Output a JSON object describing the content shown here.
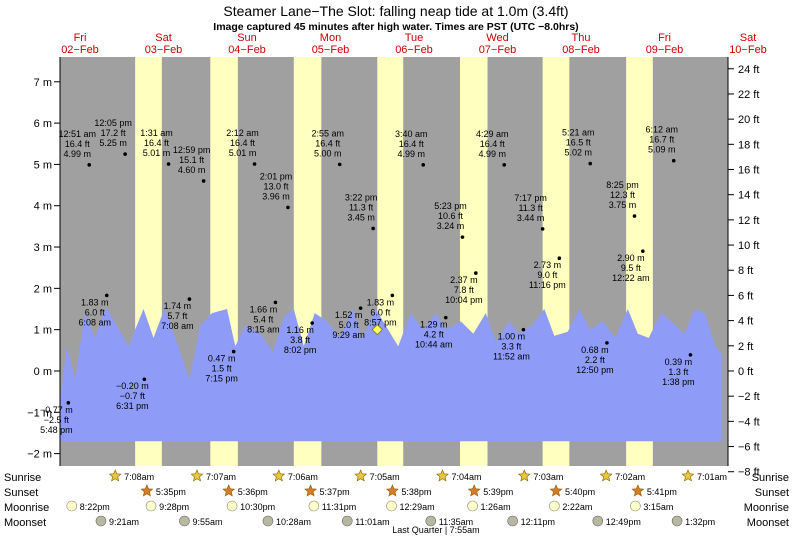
{
  "chart_data": {
    "type": "area",
    "title": "Steamer Lane−The Slot: falling  neap tide at 1.0m (3.4ft)",
    "subtitle": "Image captured 45 minutes after high water. Times are PST (UTC −8.0hrs)",
    "days": [
      {
        "dow": "Fri",
        "date": "02−Feb"
      },
      {
        "dow": "Sat",
        "date": "03−Feb"
      },
      {
        "dow": "Sun",
        "date": "04−Feb"
      },
      {
        "dow": "Mon",
        "date": "05−Feb"
      },
      {
        "dow": "Tue",
        "date": "06−Feb"
      },
      {
        "dow": "Wed",
        "date": "07−Feb"
      },
      {
        "dow": "Thu",
        "date": "08−Feb"
      },
      {
        "dow": "Fri",
        "date": "09−Feb"
      },
      {
        "dow": "Sat",
        "date": "10−Feb"
      }
    ],
    "y_left": {
      "unit": "m",
      "ylim": [
        -2.3,
        7.6
      ],
      "ticks": [
        "−2 m",
        "−1 m",
        "0 m",
        "1 m",
        "2 m",
        "3 m",
        "4 m",
        "5 m",
        "6 m",
        "7 m"
      ]
    },
    "y_right": {
      "unit": "ft",
      "ticks": [
        "−8 ft",
        "−6 ft",
        "−4 ft",
        "−2 ft",
        "0 ft",
        "2 ft",
        "4 ft",
        "6 ft",
        "8 ft",
        "10 ft",
        "12 ft",
        "14 ft",
        "16 ft",
        "18 ft",
        "20 ft",
        "22 ft",
        "24 ft"
      ]
    },
    "tide_curve": [
      [
        0.0,
        -0.77
      ],
      [
        0.08,
        0.6
      ],
      [
        0.18,
        -0.2
      ],
      [
        0.3,
        1.4
      ],
      [
        0.42,
        0.8
      ],
      [
        0.55,
        1.55
      ],
      [
        0.68,
        1.1
      ],
      [
        0.82,
        0.6
      ],
      [
        1.0,
        1.5
      ],
      [
        1.12,
        0.8
      ],
      [
        1.25,
        1.5
      ],
      [
        1.4,
        0.7
      ],
      [
        1.55,
        -0.2
      ],
      [
        1.68,
        1.1
      ],
      [
        1.82,
        1.4
      ],
      [
        2.0,
        1.5
      ],
      [
        2.1,
        0.6
      ],
      [
        2.22,
        1.1
      ],
      [
        2.4,
        0.9
      ],
      [
        2.55,
        0.47
      ],
      [
        2.68,
        1.3
      ],
      [
        2.8,
        1.5
      ],
      [
        2.92,
        0.6
      ],
      [
        3.05,
        1.4
      ],
      [
        3.2,
        1.2
      ],
      [
        3.35,
        0.8
      ],
      [
        3.5,
        1.5
      ],
      [
        3.62,
        0.8
      ],
      [
        3.78,
        1.5
      ],
      [
        3.9,
        1.1
      ],
      [
        4.05,
        0.6
      ],
      [
        4.2,
        1.4
      ],
      [
        4.35,
        1.0
      ],
      [
        4.5,
        1.4
      ],
      [
        4.62,
        1.0
      ],
      [
        4.8,
        1.2
      ],
      [
        4.95,
        0.9
      ],
      [
        5.1,
        1.4
      ],
      [
        5.22,
        0.7
      ],
      [
        5.38,
        1.2
      ],
      [
        5.5,
        0.9
      ],
      [
        5.65,
        1.1
      ],
      [
        5.8,
        1.5
      ],
      [
        5.92,
        0.85
      ],
      [
        6.08,
        0.95
      ],
      [
        6.22,
        1.5
      ],
      [
        6.35,
        1.0
      ],
      [
        6.5,
        1.2
      ],
      [
        6.65,
        0.8
      ],
      [
        6.8,
        1.5
      ],
      [
        6.92,
        0.9
      ],
      [
        7.05,
        0.8
      ],
      [
        7.2,
        1.4
      ],
      [
        7.32,
        1.2
      ],
      [
        7.48,
        0.9
      ],
      [
        7.6,
        1.5
      ],
      [
        7.72,
        1.4
      ],
      [
        7.85,
        0.6
      ],
      [
        7.93,
        0.39
      ]
    ],
    "annotations": [
      {
        "x": 0.1,
        "y": -0.77,
        "time": "5:48 pm",
        "ft": "−2.5 ft",
        "m": "−0.77 m",
        "pos": "below"
      },
      {
        "x": 0.35,
        "y": 4.99,
        "time": "12:51 am",
        "ft": "16.4 ft",
        "m": "4.99 m",
        "pos": "above"
      },
      {
        "x": 0.56,
        "y": 1.83,
        "time": "6:08 am",
        "ft": "6.0 ft",
        "m": "1.83 m",
        "pos": "below"
      },
      {
        "x": 0.78,
        "y": 5.25,
        "time": "12:05 pm",
        "ft": "17.2 ft",
        "m": "5.25 m",
        "pos": "above"
      },
      {
        "x": 1.01,
        "y": -0.2,
        "time": "6:31 pm",
        "ft": "−0.7 ft",
        "m": "−0.20 m",
        "pos": "below"
      },
      {
        "x": 1.3,
        "y": 5.01,
        "time": "1:31 am",
        "ft": "16.4 ft",
        "m": "5.01 m",
        "pos": "above"
      },
      {
        "x": 1.55,
        "y": 1.74,
        "time": "7:08 am",
        "ft": "5.7 ft",
        "m": "1.74 m",
        "pos": "below"
      },
      {
        "x": 1.72,
        "y": 4.6,
        "time": "12:59 pm",
        "ft": "15.1 ft",
        "m": "4.60 m",
        "pos": "above"
      },
      {
        "x": 2.08,
        "y": 0.47,
        "time": "7:15 pm",
        "ft": "1.5 ft",
        "m": "0.47 m",
        "pos": "below"
      },
      {
        "x": 2.33,
        "y": 5.01,
        "time": "2:12 am",
        "ft": "16.4 ft",
        "m": "5.01 m",
        "pos": "above"
      },
      {
        "x": 2.58,
        "y": 1.66,
        "time": "8:15 am",
        "ft": "5.4 ft",
        "m": "1.66 m",
        "pos": "below"
      },
      {
        "x": 2.73,
        "y": 3.96,
        "time": "2:01 pm",
        "ft": "13.0 ft",
        "m": "3.96 m",
        "pos": "above"
      },
      {
        "x": 3.02,
        "y": 1.16,
        "time": "8:02 pm",
        "ft": "3.8 ft",
        "m": "1.16 m",
        "pos": "below"
      },
      {
        "x": 3.35,
        "y": 5.0,
        "time": "2:55 am",
        "ft": "16.4 ft",
        "m": "5.00 m",
        "pos": "above"
      },
      {
        "x": 3.6,
        "y": 1.52,
        "time": "9:29 am",
        "ft": "5.0 ft",
        "m": "1.52 m",
        "pos": "below"
      },
      {
        "x": 3.75,
        "y": 3.45,
        "time": "3:22 pm",
        "ft": "11.3 ft",
        "m": "3.45 m",
        "pos": "above"
      },
      {
        "x": 3.98,
        "y": 1.83,
        "time": "8:57 pm",
        "ft": "6.0 ft",
        "m": "1.83 m",
        "pos": "below"
      },
      {
        "x": 4.35,
        "y": 4.99,
        "time": "3:40 am",
        "ft": "16.4 ft",
        "m": "4.99 m",
        "pos": "above"
      },
      {
        "x": 4.62,
        "y": 1.29,
        "time": "10:44 am",
        "ft": "4.2 ft",
        "m": "1.29 m",
        "pos": "below"
      },
      {
        "x": 4.82,
        "y": 3.24,
        "time": "5:23 pm",
        "ft": "10.6 ft",
        "m": "3.24 m",
        "pos": "above"
      },
      {
        "x": 4.98,
        "y": 2.37,
        "time": "10:04 pm",
        "ft": "7.8 ft",
        "m": "2.37 m",
        "pos": "below"
      },
      {
        "x": 5.32,
        "y": 4.99,
        "time": "4:29 am",
        "ft": "16.4 ft",
        "m": "4.99 m",
        "pos": "above"
      },
      {
        "x": 5.55,
        "y": 1.0,
        "time": "11:52 am",
        "ft": "3.3 ft",
        "m": "1.00 m",
        "pos": "below"
      },
      {
        "x": 5.78,
        "y": 3.44,
        "time": "7:17 pm",
        "ft": "11.3 ft",
        "m": "3.44 m",
        "pos": "above"
      },
      {
        "x": 5.98,
        "y": 2.73,
        "time": "11:16 pm",
        "ft": "9.0 ft",
        "m": "2.73 m",
        "pos": "below"
      },
      {
        "x": 6.35,
        "y": 5.02,
        "time": "5:21 am",
        "ft": "16.5 ft",
        "m": "5.02 m",
        "pos": "above"
      },
      {
        "x": 6.55,
        "y": 0.68,
        "time": "12:50 pm",
        "ft": "2.2 ft",
        "m": "0.68 m",
        "pos": "below"
      },
      {
        "x": 6.88,
        "y": 3.75,
        "time": "8:25 pm",
        "ft": "12.3 ft",
        "m": "3.75 m",
        "pos": "above"
      },
      {
        "x": 6.98,
        "y": 2.9,
        "time": "12:22 am",
        "ft": "9.5 ft",
        "m": "2.90 m",
        "pos": "below"
      },
      {
        "x": 7.35,
        "y": 5.09,
        "time": "6:12 am",
        "ft": "16.7 ft",
        "m": "5.09 m",
        "pos": "above"
      },
      {
        "x": 7.55,
        "y": 0.39,
        "time": "1:38 pm",
        "ft": "1.3 ft",
        "m": "0.39 m",
        "pos": "below"
      }
    ],
    "daylight_bands": [
      [
        0.9,
        1.22
      ],
      [
        1.8,
        2.13
      ],
      [
        2.8,
        3.13
      ],
      [
        3.8,
        4.11
      ],
      [
        4.79,
        5.12
      ],
      [
        5.78,
        6.1
      ],
      [
        6.78,
        7.1
      ]
    ],
    "row_labels": {
      "sunrise": "Sunrise",
      "sunset": "Sunset",
      "moonrise": "Moonrise",
      "moonset": "Moonset"
    },
    "sunrise": [
      {
        "x": 1.02,
        "t": "7:08am"
      },
      {
        "x": 2.0,
        "t": "7:07am"
      },
      {
        "x": 2.98,
        "t": "7:06am"
      },
      {
        "x": 3.96,
        "t": "7:05am"
      },
      {
        "x": 4.94,
        "t": "7:04am"
      },
      {
        "x": 5.92,
        "t": "7:03am"
      },
      {
        "x": 6.9,
        "t": "7:02am"
      },
      {
        "x": 7.88,
        "t": "7:01am"
      }
    ],
    "sunset": [
      {
        "x": 1.4,
        "t": "5:35pm"
      },
      {
        "x": 2.38,
        "t": "5:36pm"
      },
      {
        "x": 3.36,
        "t": "5:37pm"
      },
      {
        "x": 4.34,
        "t": "5:38pm"
      },
      {
        "x": 5.32,
        "t": "5:39pm"
      },
      {
        "x": 6.3,
        "t": "5:40pm"
      },
      {
        "x": 7.28,
        "t": "5:41pm"
      }
    ],
    "moonrise": [
      {
        "x": 0.5,
        "t": "8:22pm"
      },
      {
        "x": 1.45,
        "t": "9:28pm"
      },
      {
        "x": 2.42,
        "t": "10:30pm"
      },
      {
        "x": 3.4,
        "t": "11:31pm"
      },
      {
        "x": 4.33,
        "t": "12:29am"
      },
      {
        "x": 5.3,
        "t": "1:26am"
      },
      {
        "x": 6.28,
        "t": "2:22am"
      },
      {
        "x": 7.25,
        "t": "3:15am"
      }
    ],
    "moonset": [
      {
        "x": 0.85,
        "t": "9:21am"
      },
      {
        "x": 1.85,
        "t": "9:55am"
      },
      {
        "x": 2.85,
        "t": "10:28am"
      },
      {
        "x": 3.8,
        "t": "11:01am"
      },
      {
        "x": 4.8,
        "t": "11:35am"
      },
      {
        "x": 5.78,
        "t": "12:11pm"
      },
      {
        "x": 6.8,
        "t": "12:49pm"
      },
      {
        "x": 7.75,
        "t": "1:32pm"
      }
    ],
    "moon_phase": "Last Quarter | 7:55am",
    "now_marker": {
      "x": 3.8,
      "y": 1.0
    },
    "colors": {
      "night": "#a0a0a0",
      "day": "#ffffc0",
      "water": "#8e9cf8",
      "sun": "#e8c840",
      "sunset_star": "#d97a2a",
      "moonrise": "#ffffc8",
      "moonset": "#b8b8a0"
    }
  }
}
